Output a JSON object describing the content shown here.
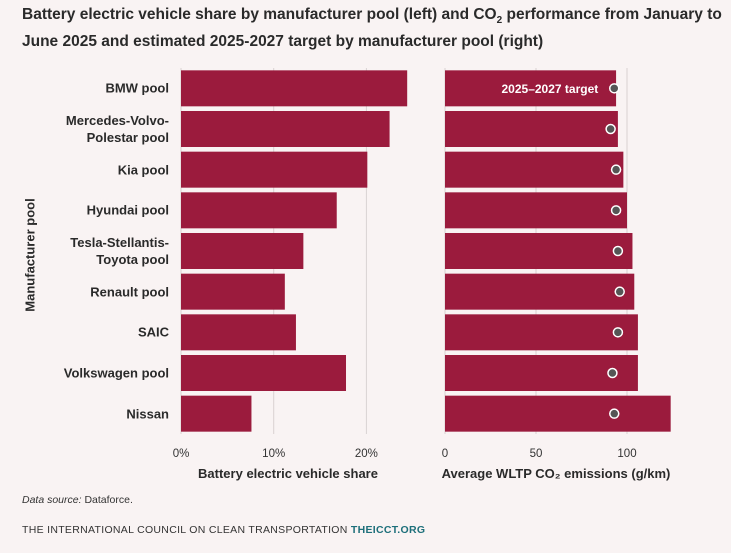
{
  "title_part1": "Battery electric vehicle share by manufacturer pool (left) and CO",
  "title_sub": "2",
  "title_part2": " performance from January to June 2025 and estimated 2025-2027 target by manufacturer pool (right)",
  "colors": {
    "bar": "#9b1b3d",
    "background": "#f9f3f3",
    "grid": "#d9d2d2",
    "marker_fill": "#555555",
    "marker_stroke": "#ffffff"
  },
  "chart_data": [
    {
      "type": "bar",
      "orientation": "horizontal",
      "title": "",
      "xlabel": "Battery electric vehicle share",
      "ylabel": "Manufacturer pool",
      "categories": [
        "BMW pool",
        "Mercedes-Volvo-Polestar pool",
        "Kia pool",
        "Hyundai pool",
        "Tesla-Stellantis-Toyota pool",
        "Renault pool",
        "SAIC",
        "Volkswagen pool",
        "Nissan"
      ],
      "category_display": [
        [
          "BMW pool"
        ],
        [
          "Mercedes-Volvo-",
          "Polestar pool"
        ],
        [
          "Kia pool"
        ],
        [
          "Hyundai pool"
        ],
        [
          "Tesla-Stellantis-",
          "Toyota pool"
        ],
        [
          "Renault pool"
        ],
        [
          "SAIC"
        ],
        [
          "Volkswagen pool"
        ],
        [
          "Nissan"
        ]
      ],
      "values": [
        24.4,
        22.5,
        20.1,
        16.8,
        13.2,
        11.2,
        12.4,
        17.8,
        7.6
      ],
      "xlim": [
        0,
        26
      ],
      "xticks": [
        0,
        10,
        20
      ],
      "xtick_labels": [
        "0%",
        "10%",
        "20%"
      ]
    },
    {
      "type": "bar",
      "orientation": "horizontal",
      "xlabel": "Average WLTP CO₂ emissions (g/km)",
      "categories": [
        "BMW pool",
        "Mercedes-Volvo-Polestar pool",
        "Kia pool",
        "Hyundai pool",
        "Tesla-Stellantis-Toyota pool",
        "Renault pool",
        "SAIC",
        "Volkswagen pool",
        "Nissan"
      ],
      "series": [
        {
          "name": "Average WLTP CO₂ emissions (Jan-Jun 2025)",
          "values": [
            94,
            95,
            98,
            100,
            103,
            104,
            106,
            106,
            124
          ]
        },
        {
          "name": "2025-2027 target",
          "marker": "circle",
          "values": [
            93,
            91,
            94,
            94,
            95,
            96,
            95,
            92,
            93
          ]
        }
      ],
      "annotation": "2025–2027 target",
      "xlim": [
        0,
        130
      ],
      "xticks": [
        0,
        50,
        100
      ],
      "xtick_labels": [
        "0",
        "50",
        "100"
      ]
    }
  ],
  "source_label": "Data source:",
  "source_text": " Dataforce.",
  "footer_org": "THE INTERNATIONAL COUNCIL ON CLEAN TRANSPORTATION ",
  "footer_site": "THEICCT.ORG"
}
